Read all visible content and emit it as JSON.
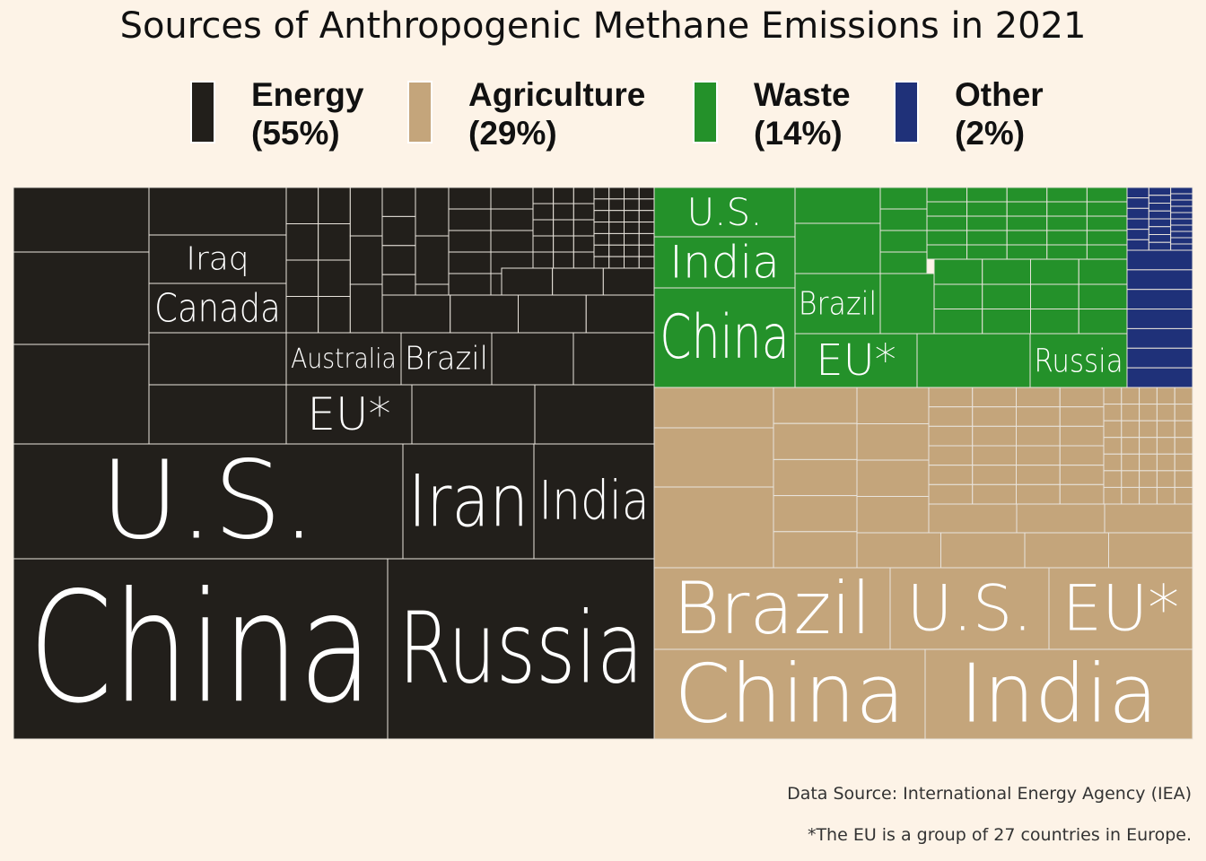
{
  "chart_data": {
    "type": "treemap",
    "title": "Sources of Anthropogenic Methane Emissions in 2021",
    "legend": [
      {
        "label": "Energy",
        "pct": "(55%)",
        "color": "#221f1b"
      },
      {
        "label": "Agriculture",
        "pct": "(29%)",
        "color": "#c4a57b"
      },
      {
        "label": "Waste",
        "pct": "(14%)",
        "color": "#24912a"
      },
      {
        "label": "Other",
        "pct": "(2%)",
        "color": "#1f3179"
      }
    ],
    "legend_placement": "top",
    "labeled_tiles": [
      {
        "category": "Energy",
        "label": "China"
      },
      {
        "category": "Energy",
        "label": "Russia"
      },
      {
        "category": "Energy",
        "label": "U.S."
      },
      {
        "category": "Energy",
        "label": "Iran"
      },
      {
        "category": "Energy",
        "label": "India"
      },
      {
        "category": "Energy",
        "label": "EU*"
      },
      {
        "category": "Energy",
        "label": "Australia"
      },
      {
        "category": "Energy",
        "label": "Brazil"
      },
      {
        "category": "Energy",
        "label": "Canada"
      },
      {
        "category": "Energy",
        "label": "Iraq"
      },
      {
        "category": "Waste",
        "label": "U.S."
      },
      {
        "category": "Waste",
        "label": "India"
      },
      {
        "category": "Waste",
        "label": "China"
      },
      {
        "category": "Waste",
        "label": "Brazil"
      },
      {
        "category": "Waste",
        "label": "EU*"
      },
      {
        "category": "Waste",
        "label": "Russia"
      },
      {
        "category": "Agriculture",
        "label": "Brazil"
      },
      {
        "category": "Agriculture",
        "label": "U.S."
      },
      {
        "category": "Agriculture",
        "label": "EU*"
      },
      {
        "category": "Agriculture",
        "label": "China"
      },
      {
        "category": "Agriculture",
        "label": "India"
      }
    ]
  },
  "footnotes": {
    "source": "Data Source: International Energy Agency (IEA)",
    "eu_note": "*The EU is a group of 27 countries in Europe."
  }
}
